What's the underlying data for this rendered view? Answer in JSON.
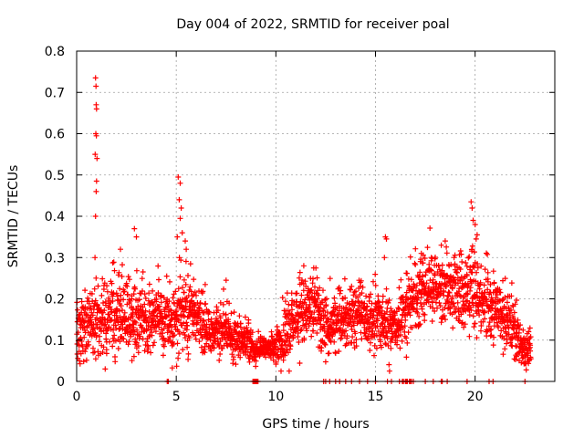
{
  "chart_data": {
    "type": "scatter",
    "title": "Day 004 of 2022, SRMTID for receiver poal",
    "xlabel": "GPS time / hours",
    "ylabel": "SRMTID / TECUs",
    "xlim": [
      0,
      24
    ],
    "ylim": [
      0,
      0.8
    ],
    "x_ticks": [
      0,
      5,
      10,
      15,
      20
    ],
    "x_tick_labels": [
      "0",
      "5",
      "10",
      "15",
      "20"
    ],
    "y_ticks": [
      0,
      0.1,
      0.2,
      0.3,
      0.4,
      0.5,
      0.6,
      0.7,
      0.8
    ],
    "y_tick_labels": [
      "0",
      "0.1",
      "0.2",
      "0.3",
      "0.4",
      "0.5",
      "0.6",
      "0.7",
      "0.8"
    ],
    "grid": true,
    "marker": "+",
    "marker_color": "#ff0000",
    "series": [
      {
        "name": "SRMTID",
        "profile_hours": [
          0.0,
          0.3,
          0.6,
          0.9,
          1.2,
          1.5,
          1.8,
          2.1,
          2.4,
          2.7,
          3.0,
          3.3,
          3.6,
          3.9,
          4.2,
          4.5,
          4.8,
          5.1,
          5.4,
          5.7,
          6.0,
          6.3,
          6.6,
          6.9,
          7.2,
          7.5,
          7.8,
          8.1,
          8.4,
          8.7,
          9.0,
          9.3,
          9.6,
          9.9,
          10.2,
          10.5,
          10.8,
          11.1,
          11.4,
          11.7,
          12.0,
          12.3,
          12.6,
          12.9,
          13.2,
          13.5,
          13.8,
          14.1,
          14.4,
          14.7,
          15.0,
          15.3,
          15.6,
          15.9,
          16.2,
          16.5,
          16.8,
          17.1,
          17.4,
          17.7,
          18.0,
          18.3,
          18.6,
          18.9,
          19.2,
          19.5,
          19.8,
          20.1,
          20.4,
          20.7,
          21.0,
          21.3,
          21.6,
          21.9,
          22.2,
          22.5,
          22.8
        ],
        "profile_median": [
          0.12,
          0.13,
          0.14,
          0.15,
          0.14,
          0.15,
          0.16,
          0.17,
          0.15,
          0.16,
          0.17,
          0.15,
          0.14,
          0.17,
          0.16,
          0.14,
          0.15,
          0.17,
          0.18,
          0.17,
          0.15,
          0.13,
          0.12,
          0.12,
          0.11,
          0.12,
          0.12,
          0.11,
          0.1,
          0.09,
          0.07,
          0.08,
          0.08,
          0.08,
          0.09,
          0.12,
          0.14,
          0.16,
          0.17,
          0.18,
          0.19,
          0.15,
          0.14,
          0.14,
          0.15,
          0.15,
          0.16,
          0.17,
          0.16,
          0.15,
          0.15,
          0.14,
          0.13,
          0.14,
          0.14,
          0.16,
          0.19,
          0.2,
          0.22,
          0.23,
          0.24,
          0.23,
          0.22,
          0.21,
          0.22,
          0.21,
          0.23,
          0.22,
          0.2,
          0.19,
          0.18,
          0.17,
          0.15,
          0.12,
          0.1,
          0.08,
          0.09
        ],
        "profile_spread": [
          0.05,
          0.05,
          0.05,
          0.06,
          0.06,
          0.06,
          0.07,
          0.08,
          0.07,
          0.07,
          0.07,
          0.06,
          0.06,
          0.06,
          0.06,
          0.05,
          0.06,
          0.07,
          0.07,
          0.06,
          0.05,
          0.05,
          0.05,
          0.04,
          0.04,
          0.04,
          0.04,
          0.04,
          0.03,
          0.03,
          0.02,
          0.02,
          0.02,
          0.03,
          0.04,
          0.05,
          0.06,
          0.06,
          0.06,
          0.06,
          0.05,
          0.05,
          0.05,
          0.05,
          0.05,
          0.05,
          0.05,
          0.05,
          0.05,
          0.05,
          0.05,
          0.05,
          0.05,
          0.05,
          0.05,
          0.06,
          0.06,
          0.06,
          0.06,
          0.06,
          0.06,
          0.06,
          0.06,
          0.06,
          0.06,
          0.06,
          0.07,
          0.06,
          0.06,
          0.06,
          0.05,
          0.05,
          0.05,
          0.04,
          0.04,
          0.03,
          0.03
        ],
        "peaks": [
          {
            "x": 0.95,
            "y": 0.735
          },
          {
            "x": 0.97,
            "y": 0.715
          },
          {
            "x": 0.98,
            "y": 0.67
          },
          {
            "x": 1.0,
            "y": 0.66
          },
          {
            "x": 0.96,
            "y": 0.6
          },
          {
            "x": 0.99,
            "y": 0.595
          },
          {
            "x": 0.93,
            "y": 0.55
          },
          {
            "x": 1.02,
            "y": 0.54
          },
          {
            "x": 1.0,
            "y": 0.485
          },
          {
            "x": 0.98,
            "y": 0.46
          },
          {
            "x": 0.95,
            "y": 0.4
          },
          {
            "x": 0.92,
            "y": 0.3
          },
          {
            "x": 5.1,
            "y": 0.495
          },
          {
            "x": 5.2,
            "y": 0.48
          },
          {
            "x": 5.15,
            "y": 0.44
          },
          {
            "x": 5.25,
            "y": 0.42
          },
          {
            "x": 5.2,
            "y": 0.395
          },
          {
            "x": 5.3,
            "y": 0.36
          },
          {
            "x": 5.05,
            "y": 0.35
          },
          {
            "x": 5.45,
            "y": 0.34
          },
          {
            "x": 5.5,
            "y": 0.32
          },
          {
            "x": 2.9,
            "y": 0.37
          },
          {
            "x": 3.0,
            "y": 0.35
          },
          {
            "x": 2.2,
            "y": 0.32
          },
          {
            "x": 15.5,
            "y": 0.35
          },
          {
            "x": 15.55,
            "y": 0.345
          },
          {
            "x": 15.45,
            "y": 0.3
          },
          {
            "x": 19.8,
            "y": 0.435
          },
          {
            "x": 19.85,
            "y": 0.42
          },
          {
            "x": 19.9,
            "y": 0.39
          },
          {
            "x": 20.0,
            "y": 0.38
          },
          {
            "x": 20.1,
            "y": 0.355
          },
          {
            "x": 20.05,
            "y": 0.345
          },
          {
            "x": 18.5,
            "y": 0.34
          },
          {
            "x": 18.3,
            "y": 0.33
          },
          {
            "x": 7.5,
            "y": 0.245
          },
          {
            "x": 11.9,
            "y": 0.275
          },
          {
            "x": 11.4,
            "y": 0.28
          },
          {
            "x": 17.3,
            "y": 0.31
          }
        ],
        "zero_hours": [
          4.55,
          4.6,
          8.85,
          8.9,
          8.95,
          9.0,
          9.05,
          9.1,
          12.4,
          12.5,
          12.7,
          13.0,
          13.2,
          13.5,
          13.8,
          14.2,
          14.6,
          15.0,
          15.6,
          15.8,
          16.2,
          16.35,
          16.4,
          16.5,
          16.55,
          16.6,
          16.7,
          16.75,
          16.8,
          16.9,
          17.5,
          17.9,
          18.3,
          18.35,
          18.6,
          19.6,
          20.7,
          20.9,
          22.5
        ]
      }
    ]
  }
}
